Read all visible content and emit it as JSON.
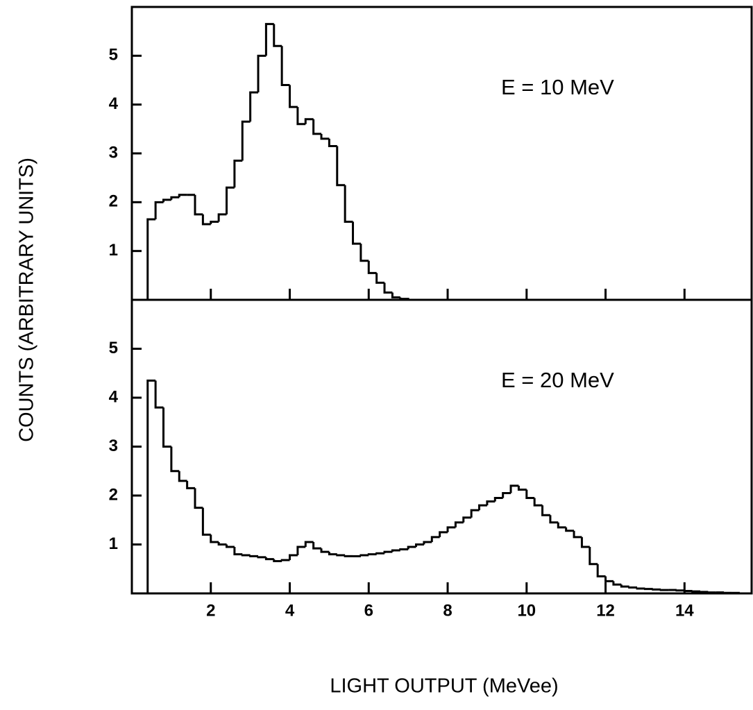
{
  "ylabel": "COUNTS (ARBITRARY UNITS)",
  "xlabel": "LIGHT OUTPUT (MeVee)",
  "chart_data": [
    {
      "type": "histogram",
      "annotation": "E = 10 MeV",
      "color": "#000000",
      "bins": [
        0.4,
        0.6,
        0.8,
        1.0,
        1.2,
        1.4,
        1.6,
        1.8,
        2.0,
        2.2,
        2.4,
        2.6,
        2.8,
        3.0,
        3.2,
        3.4,
        3.6,
        3.8,
        4.0,
        4.2,
        4.4,
        4.6,
        4.8,
        5.0,
        5.2,
        5.4,
        5.6,
        5.8,
        6.0,
        6.2,
        6.4,
        6.6,
        6.8,
        7.0
      ],
      "values": [
        1.65,
        2.0,
        2.05,
        2.1,
        2.15,
        2.15,
        1.75,
        1.55,
        1.6,
        1.75,
        2.3,
        2.85,
        3.65,
        4.25,
        5.0,
        5.65,
        5.2,
        4.4,
        3.95,
        3.6,
        3.7,
        3.4,
        3.3,
        3.15,
        2.35,
        1.6,
        1.15,
        0.8,
        0.55,
        0.35,
        0.15,
        0.05,
        0.02
      ],
      "xlim": [
        0,
        15.7
      ],
      "ylim": [
        0,
        6
      ],
      "yticks": [
        1,
        2,
        3,
        4,
        5
      ]
    },
    {
      "type": "histogram",
      "annotation": "E = 20 MeV",
      "color": "#000000",
      "bins": [
        0.4,
        0.6,
        0.8,
        1.0,
        1.2,
        1.4,
        1.6,
        1.8,
        2.0,
        2.2,
        2.4,
        2.6,
        2.8,
        3.0,
        3.2,
        3.4,
        3.6,
        3.8,
        4.0,
        4.2,
        4.4,
        4.6,
        4.8,
        5.0,
        5.2,
        5.4,
        5.6,
        5.8,
        6.0,
        6.2,
        6.4,
        6.6,
        6.8,
        7.0,
        7.2,
        7.4,
        7.6,
        7.8,
        8.0,
        8.2,
        8.4,
        8.6,
        8.8,
        9.0,
        9.2,
        9.4,
        9.6,
        9.8,
        10.0,
        10.2,
        10.4,
        10.6,
        10.8,
        11.0,
        11.2,
        11.4,
        11.6,
        11.8,
        12.0,
        12.2,
        12.4,
        12.6,
        12.8,
        13.0,
        13.2,
        13.4,
        13.6,
        13.8,
        14.0,
        14.2,
        14.4,
        14.6,
        14.8,
        15.0,
        15.2,
        15.4,
        15.6
      ],
      "values": [
        4.35,
        3.8,
        3.0,
        2.5,
        2.3,
        2.15,
        1.75,
        1.2,
        1.05,
        1.0,
        0.95,
        0.8,
        0.78,
        0.76,
        0.74,
        0.7,
        0.66,
        0.68,
        0.78,
        0.95,
        1.05,
        0.92,
        0.85,
        0.8,
        0.78,
        0.76,
        0.76,
        0.78,
        0.8,
        0.82,
        0.85,
        0.88,
        0.9,
        0.95,
        1.0,
        1.05,
        1.15,
        1.25,
        1.35,
        1.45,
        1.55,
        1.7,
        1.8,
        1.88,
        1.95,
        2.05,
        2.2,
        2.12,
        1.95,
        1.8,
        1.6,
        1.45,
        1.35,
        1.28,
        1.15,
        0.95,
        0.6,
        0.35,
        0.25,
        0.18,
        0.14,
        0.12,
        0.1,
        0.09,
        0.08,
        0.07,
        0.07,
        0.06,
        0.05,
        0.04,
        0.03,
        0.02,
        0.02,
        0.01,
        0.01,
        0
      ],
      "xlim": [
        0,
        15.7
      ],
      "ylim": [
        0,
        6
      ],
      "yticks": [
        1,
        2,
        3,
        4,
        5
      ],
      "xticks": [
        2,
        4,
        6,
        8,
        10,
        12,
        14
      ]
    }
  ]
}
